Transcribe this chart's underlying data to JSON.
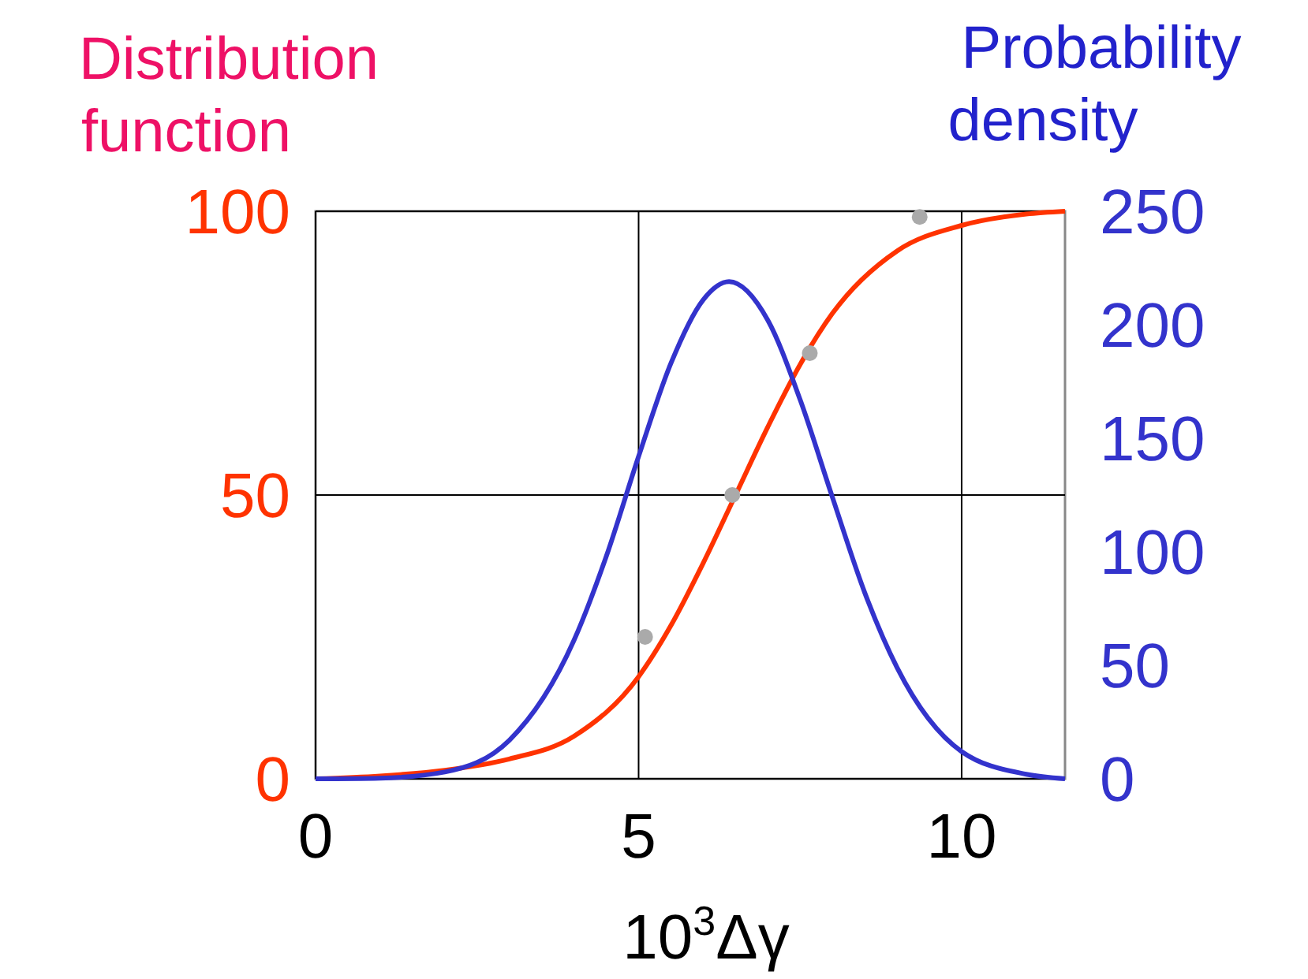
{
  "chart_data": {
    "type": "line",
    "xlabel": "10$^{3}$Δγ",
    "ylabel": "Distribution function",
    "y2label": "Probability density",
    "xlim": [
      0,
      11.6
    ],
    "xticks": [
      0,
      5,
      10
    ],
    "ylim": [
      0,
      100
    ],
    "yticks": [
      0,
      50,
      100
    ],
    "y2lim": [
      0,
      250
    ],
    "y2ticks": [
      0,
      50,
      100,
      150,
      200,
      250
    ],
    "grid": true,
    "series": [
      {
        "color": "#ff3300",
        "x": [
          0,
          1,
          2,
          3,
          4,
          5,
          5.5,
          6,
          6.5,
          7,
          7.5,
          8,
          9,
          10,
          11,
          11.6
        ],
        "values": [
          0,
          0.5,
          1.5,
          3.5,
          7.5,
          18,
          27,
          38,
          50,
          62,
          73,
          82,
          93,
          97.5,
          99.5,
          100
        ]
      },
      {
        "axis": "y2",
        "color": "#3333cc",
        "x": [
          0,
          1,
          2,
          3,
          4,
          4.5,
          5,
          5.5,
          6,
          6.4,
          7,
          7.5,
          8,
          8.5,
          9,
          10,
          11,
          11.6
        ],
        "values": [
          0,
          0.3,
          3,
          17,
          61,
          98,
          142,
          183,
          211,
          219,
          202,
          167,
          124,
          82,
          49,
          12,
          2,
          0
        ]
      },
      {
        "type": "scatter",
        "color": "#aaaaaa",
        "marker": "circle",
        "x": [
          5.1,
          6.45,
          7.65,
          9.35
        ],
        "values": [
          25,
          50,
          75,
          99
        ]
      }
    ]
  }
}
